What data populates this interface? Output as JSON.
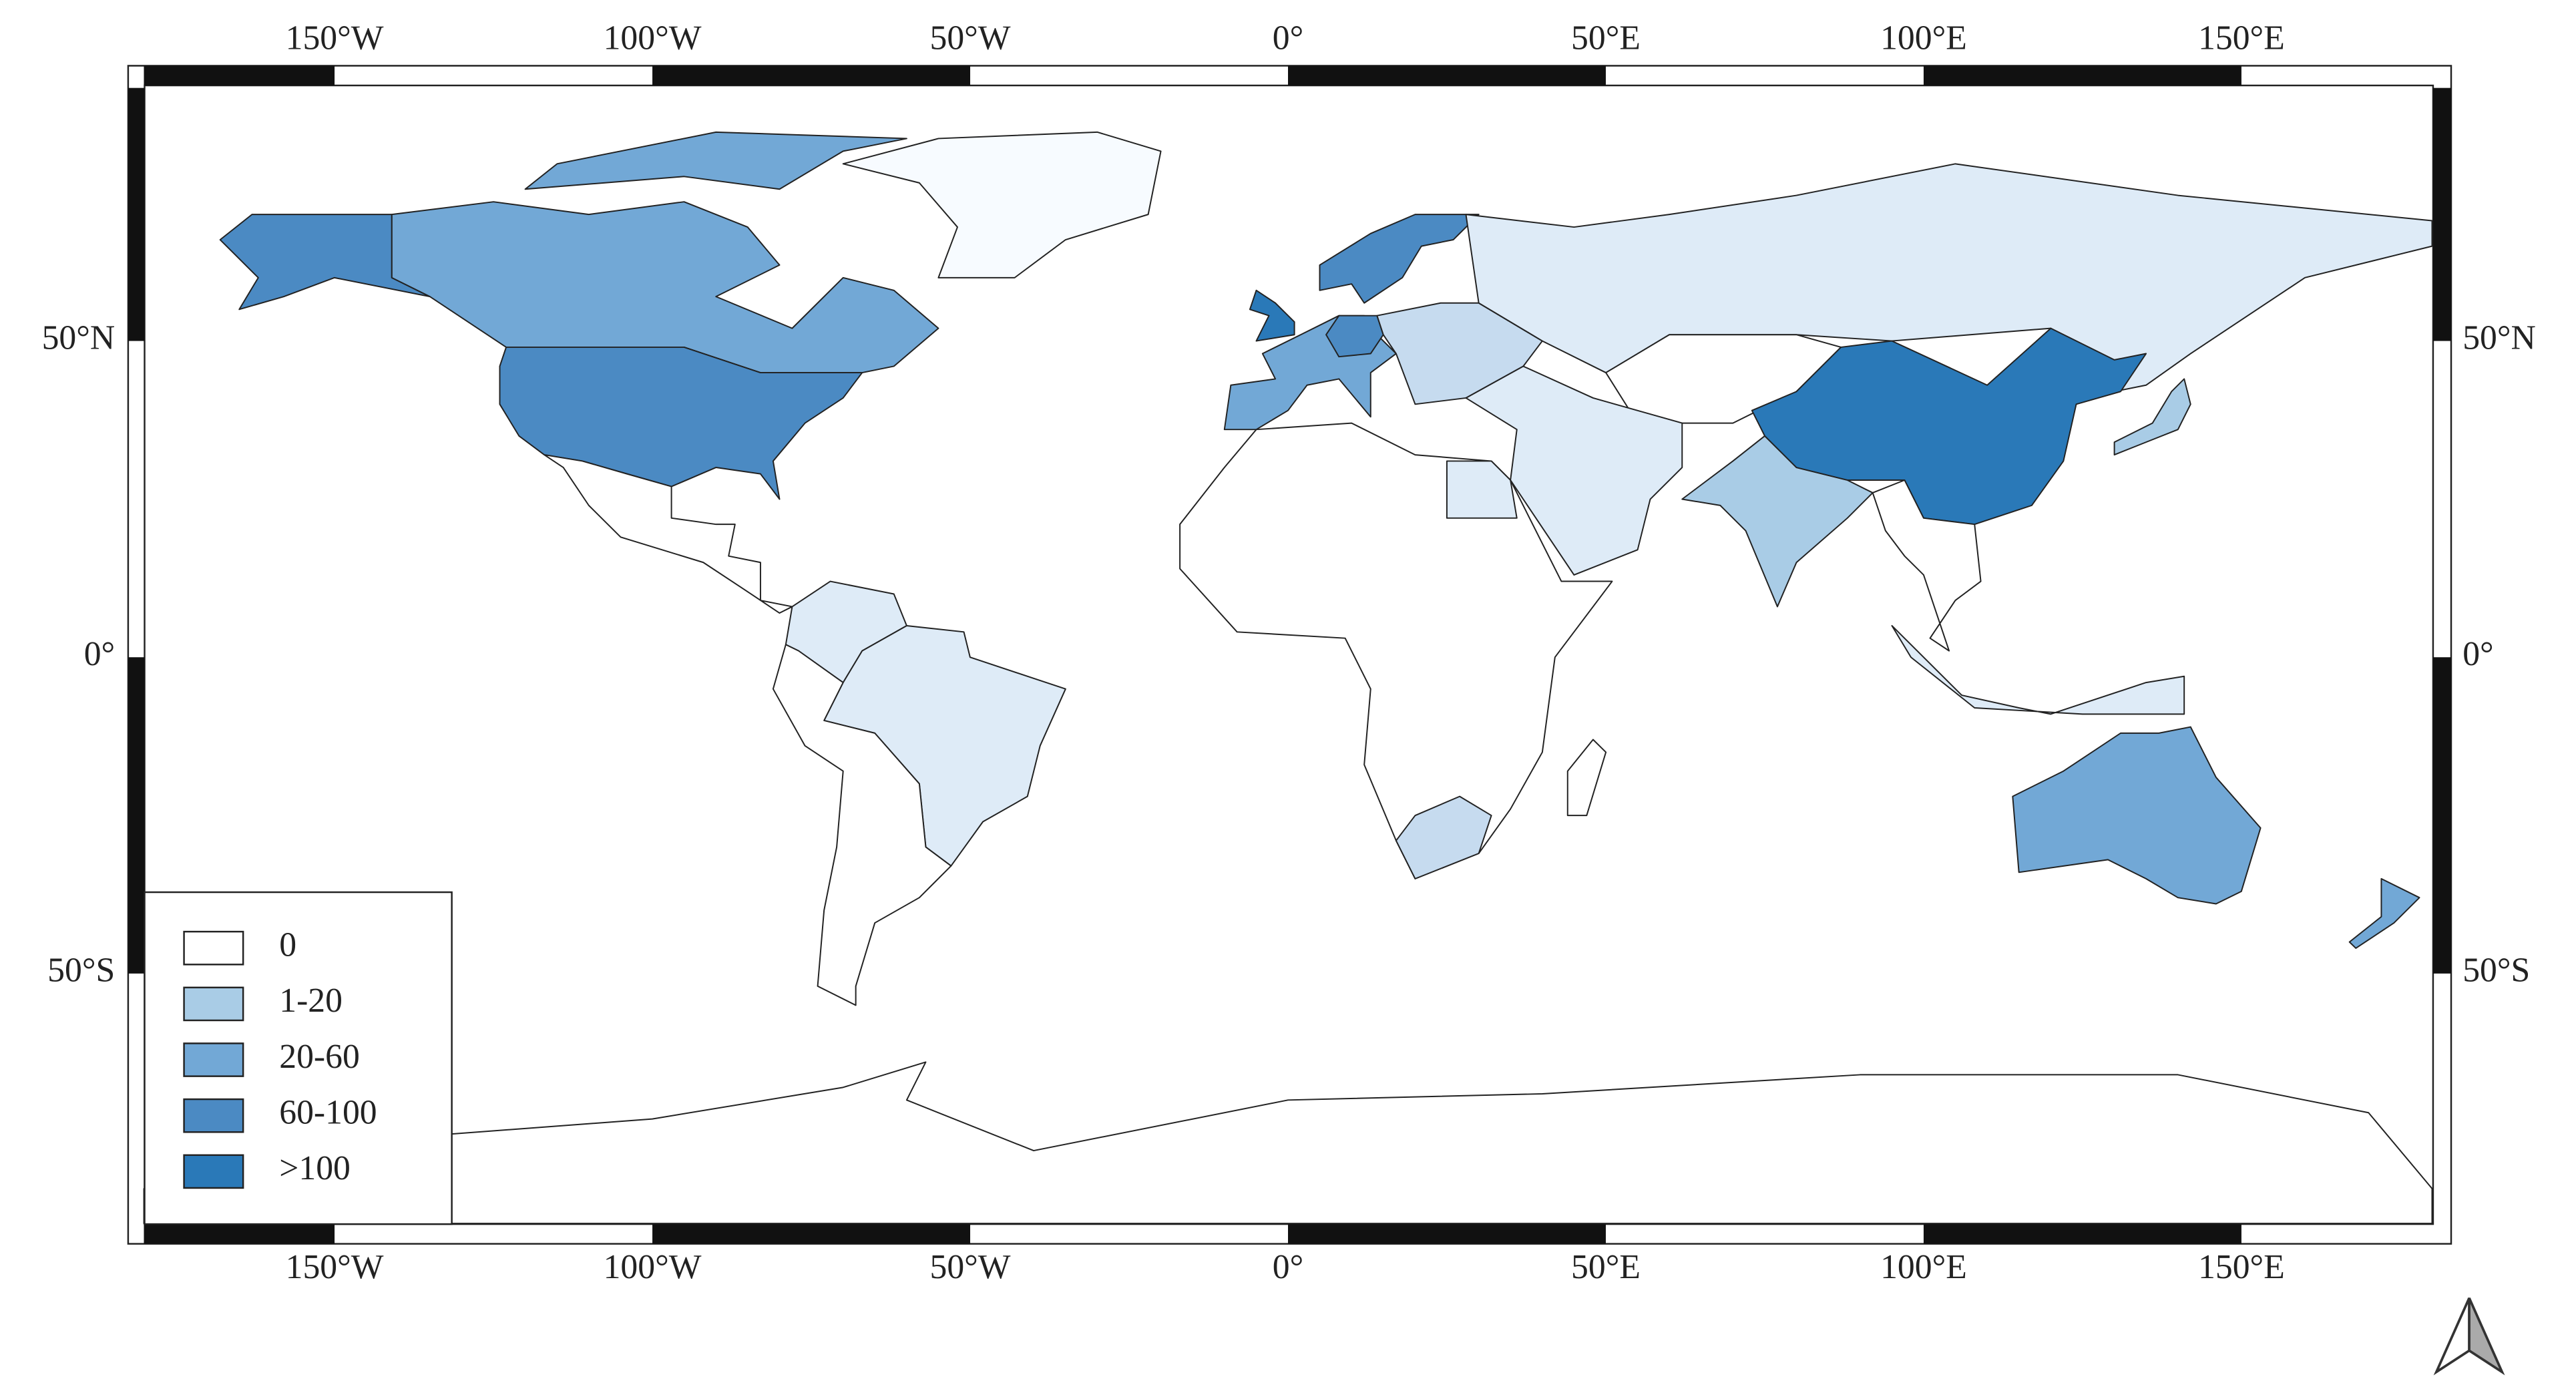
{
  "map": {
    "lon_labels": [
      "150°W",
      "100°W",
      "50°W",
      "0°",
      "50°E",
      "100°E",
      "150°E"
    ],
    "lat_labels": [
      "50°N",
      "0°",
      "50°S"
    ],
    "legend": [
      {
        "label": "0",
        "color": "#ffffff"
      },
      {
        "label": "1-20",
        "color": "#a9cce6"
      },
      {
        "label": "20-60",
        "color": "#72a8d6"
      },
      {
        "label": "60-100",
        "color": "#4b8ac3"
      },
      {
        "label": ">100",
        "color": "#2a79b8"
      }
    ]
  }
}
